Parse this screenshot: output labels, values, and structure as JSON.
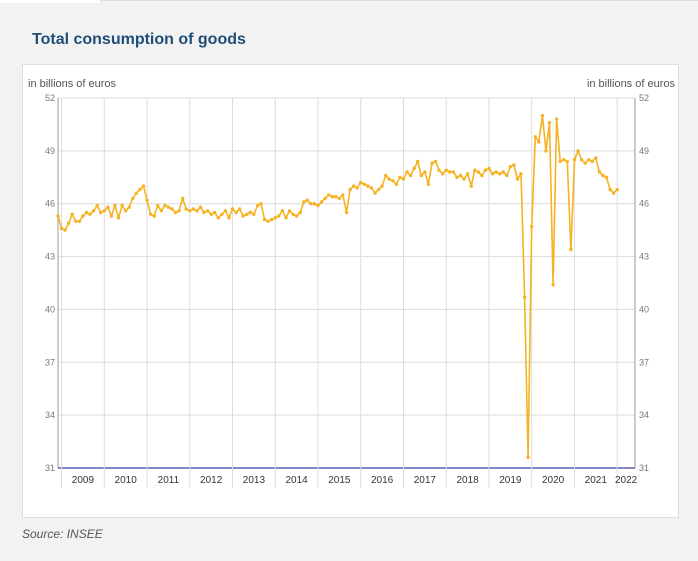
{
  "page": {
    "title": "Total consumption of goods",
    "source": "Source: INSEE"
  },
  "chart_data": {
    "type": "line",
    "title": "Total consumption of goods",
    "ylabel_left": "in billions of euros",
    "ylabel_right": "in billions of euros",
    "ylim": [
      31,
      52
    ],
    "yticks": [
      31,
      34,
      37,
      40,
      43,
      46,
      49,
      52
    ],
    "xlim": [
      "2008-12",
      "2022-06"
    ],
    "x_categories": [
      "2009",
      "2010",
      "2011",
      "2012",
      "2013",
      "2014",
      "2015",
      "2016",
      "2017",
      "2018",
      "2019",
      "2020",
      "2021",
      "2022"
    ],
    "grid": true,
    "colors": {
      "line": "#f5b323",
      "baseline": "#3a3aa8",
      "grid": "#dcdcdc"
    },
    "series": [
      {
        "frequency": "monthly",
        "start": "2008-12",
        "values": [
          45.3,
          44.6,
          44.5,
          44.9,
          45.4,
          45.0,
          45.0,
          45.3,
          45.5,
          45.4,
          45.6,
          45.9,
          45.5,
          45.6,
          45.8,
          45.3,
          45.9,
          45.2,
          45.9,
          45.6,
          45.8,
          46.3,
          46.6,
          46.8,
          47.0,
          46.2,
          45.4,
          45.3,
          45.9,
          45.6,
          45.9,
          45.8,
          45.7,
          45.5,
          45.6,
          46.3,
          45.7,
          45.6,
          45.7,
          45.6,
          45.8,
          45.5,
          45.6,
          45.4,
          45.5,
          45.2,
          45.4,
          45.6,
          45.2,
          45.7,
          45.5,
          45.7,
          45.3,
          45.4,
          45.5,
          45.4,
          45.9,
          46.0,
          45.1,
          45.0,
          45.1,
          45.2,
          45.3,
          45.6,
          45.2,
          45.6,
          45.4,
          45.3,
          45.5,
          46.1,
          46.2,
          46.0,
          46.0,
          45.9,
          46.1,
          46.3,
          46.5,
          46.4,
          46.4,
          46.3,
          46.5,
          45.5,
          46.8,
          47.0,
          46.9,
          47.2,
          47.1,
          47.0,
          46.9,
          46.6,
          46.8,
          47.0,
          47.6,
          47.4,
          47.3,
          47.1,
          47.5,
          47.4,
          47.8,
          47.6,
          48.0,
          48.4,
          47.6,
          47.8,
          47.1,
          48.3,
          48.4,
          47.9,
          47.7,
          47.9,
          47.8,
          47.8,
          47.5,
          47.6,
          47.4,
          47.7,
          47.0,
          47.9,
          47.8,
          47.6,
          47.9,
          48.0,
          47.7,
          47.8,
          47.7,
          47.8,
          47.6,
          48.1,
          48.2,
          47.4,
          47.7,
          40.7,
          31.6,
          44.7,
          49.8,
          49.5,
          51.0,
          49.0,
          50.6,
          41.4,
          50.8,
          48.4,
          48.5,
          48.4,
          43.4,
          48.5,
          49.0,
          48.5,
          48.3,
          48.5,
          48.4,
          48.6,
          47.8,
          47.6,
          47.5,
          46.8,
          46.6,
          46.8
        ]
      }
    ]
  }
}
